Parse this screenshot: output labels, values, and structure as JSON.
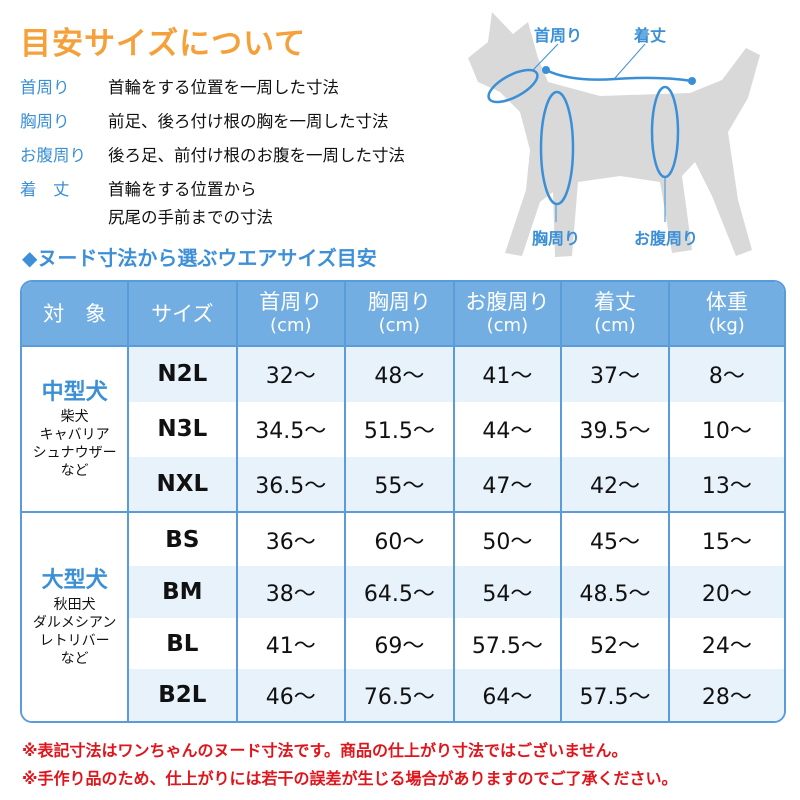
{
  "title": "目安サイズについて",
  "definitions": [
    {
      "label": "首周り",
      "text": [
        "首輪をする位置を一周した寸法"
      ]
    },
    {
      "label": "胸周り",
      "text": [
        "前足、後ろ付け根の胸を一周した寸法"
      ]
    },
    {
      "label": "お腹周り",
      "text": [
        "後ろ足、前付け根のお腹を一周した寸法"
      ]
    },
    {
      "label": "着　丈",
      "text": [
        "首輪をする位置から",
        "尻尾の手前までの寸法"
      ]
    }
  ],
  "diagram": {
    "neck_label": "首周り",
    "length_label": "着丈",
    "chest_label": "胸周り",
    "belly_label": "お腹周り"
  },
  "subtitle": "◆ヌード寸法から選ぶウエアサイズ目安",
  "table": {
    "headers": [
      {
        "label": "対　象",
        "unit": ""
      },
      {
        "label": "サイズ",
        "unit": ""
      },
      {
        "label": "首周り",
        "unit": "(cm)"
      },
      {
        "label": "胸周り",
        "unit": "(cm)"
      },
      {
        "label": "お腹周り",
        "unit": "(cm)"
      },
      {
        "label": "着丈",
        "unit": "(cm)"
      },
      {
        "label": "体重",
        "unit": "(kg)"
      }
    ],
    "groups": [
      {
        "name": "中型犬",
        "examples": [
          "柴犬",
          "キャバリア",
          "シュナウザー",
          "など"
        ],
        "rows": [
          [
            "N2L",
            "32〜",
            "48〜",
            "41〜",
            "37〜",
            "8〜"
          ],
          [
            "N3L",
            "34.5〜",
            "51.5〜",
            "44〜",
            "39.5〜",
            "10〜"
          ],
          [
            "NXL",
            "36.5〜",
            "55〜",
            "47〜",
            "42〜",
            "13〜"
          ]
        ]
      },
      {
        "name": "大型犬",
        "examples": [
          "秋田犬",
          "ダルメシアン",
          "レトリバー",
          "など"
        ],
        "rows": [
          [
            "BS",
            "36〜",
            "60〜",
            "50〜",
            "45〜",
            "15〜"
          ],
          [
            "BM",
            "38〜",
            "64.5〜",
            "54〜",
            "48.5〜",
            "20〜"
          ],
          [
            "BL",
            "41〜",
            "69〜",
            "57.5〜",
            "52〜",
            "24〜"
          ],
          [
            "B2L",
            "46〜",
            "76.5〜",
            "64〜",
            "57.5〜",
            "28〜"
          ]
        ]
      }
    ]
  },
  "notes": [
    "※表記寸法はワンちゃんのヌード寸法です。商品の仕上がり寸法ではございません。",
    "※手作り品のため、仕上がりには若干の誤差が生じる場合がありますのでご了承ください。"
  ],
  "colors": {
    "title": "#f5a038",
    "accent": "#3a8fd6",
    "header": "#73aee2",
    "stripe": "#e8f2fb",
    "note": "#e0151c",
    "dog": "#d9d9d9"
  }
}
